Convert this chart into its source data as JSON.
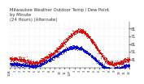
{
  "title": "Milwaukee Weather Outdoor Temp / Dew Point\nby Minute\n(24 Hours) (Alternate)",
  "title_fontsize": 3.8,
  "bg_color": "#ffffff",
  "grid_color": "#cccccc",
  "temp_color": "#dd0000",
  "dew_color": "#0000cc",
  "ylabel_fontsize": 3.5,
  "xlabel_fontsize": 2.8,
  "ylim": [
    30,
    90
  ],
  "yticks": [
    41,
    51,
    61,
    71,
    81
  ],
  "num_points": 1440,
  "x_hour_labels": [
    "12A",
    "1",
    "2",
    "3",
    "4",
    "5",
    "6",
    "7",
    "8",
    "9",
    "10",
    "11",
    "12P",
    "1",
    "2",
    "3",
    "4",
    "5",
    "6",
    "7",
    "8",
    "9",
    "10",
    "11",
    "12"
  ],
  "marker_size": 0.4
}
